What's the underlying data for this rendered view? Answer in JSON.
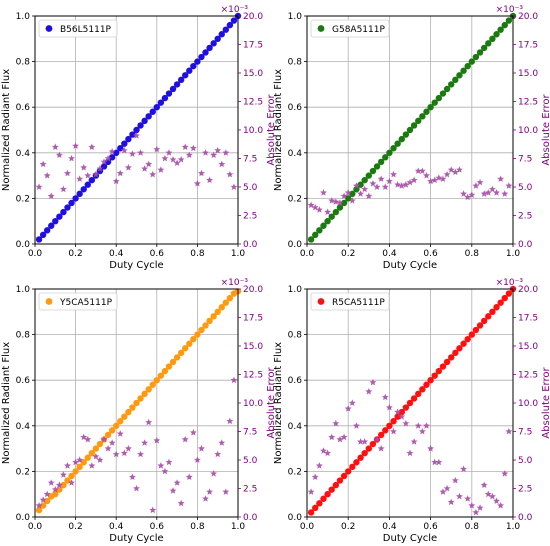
{
  "chart_data": [
    {
      "type": "scatter",
      "series": [
        {
          "name": "B56L5111P",
          "axis": "left",
          "color": "#1f10e0",
          "marker": "circle",
          "x": [
            0.02,
            0.04,
            0.06,
            0.08,
            0.1,
            0.12,
            0.14,
            0.16,
            0.18,
            0.2,
            0.22,
            0.24,
            0.26,
            0.28,
            0.3,
            0.32,
            0.34,
            0.36,
            0.38,
            0.4,
            0.42,
            0.44,
            0.46,
            0.48,
            0.5,
            0.52,
            0.54,
            0.56,
            0.58,
            0.6,
            0.62,
            0.64,
            0.66,
            0.68,
            0.7,
            0.72,
            0.74,
            0.76,
            0.78,
            0.8,
            0.82,
            0.84,
            0.86,
            0.88,
            0.9,
            0.92,
            0.94,
            0.96,
            0.98,
            1.0
          ],
          "y": [
            0.02,
            0.04,
            0.06,
            0.08,
            0.1,
            0.12,
            0.14,
            0.16,
            0.18,
            0.2,
            0.22,
            0.24,
            0.26,
            0.28,
            0.3,
            0.32,
            0.34,
            0.36,
            0.38,
            0.4,
            0.42,
            0.44,
            0.46,
            0.48,
            0.5,
            0.52,
            0.54,
            0.56,
            0.58,
            0.6,
            0.62,
            0.64,
            0.66,
            0.68,
            0.7,
            0.72,
            0.74,
            0.76,
            0.78,
            0.8,
            0.82,
            0.84,
            0.86,
            0.88,
            0.9,
            0.92,
            0.94,
            0.96,
            0.98,
            1.0
          ]
        },
        {
          "axis": "right",
          "color": "#a64ca6",
          "marker": "star",
          "x": [
            0.02,
            0.04,
            0.06,
            0.08,
            0.1,
            0.12,
            0.14,
            0.16,
            0.18,
            0.2,
            0.22,
            0.24,
            0.26,
            0.28,
            0.3,
            0.32,
            0.34,
            0.36,
            0.38,
            0.4,
            0.42,
            0.44,
            0.46,
            0.48,
            0.5,
            0.52,
            0.54,
            0.56,
            0.58,
            0.6,
            0.62,
            0.64,
            0.66,
            0.68,
            0.7,
            0.72,
            0.74,
            0.76,
            0.78,
            0.8,
            0.82,
            0.84,
            0.86,
            0.88,
            0.9,
            0.92,
            0.94,
            0.96,
            0.98
          ],
          "y": [
            5.0,
            7.0,
            6.0,
            4.2,
            8.5,
            7.8,
            4.8,
            6.2,
            7.5,
            8.6,
            5.7,
            6.7,
            6.0,
            8.5,
            6.1,
            6.6,
            7.2,
            7.5,
            8.1,
            5.5,
            6.2,
            8.2,
            6.7,
            7.9,
            9.5,
            8.0,
            6.6,
            7.0,
            6.1,
            8.3,
            6.5,
            7.5,
            8.0,
            7.4,
            7.1,
            7.4,
            8.5,
            7.8,
            8.4,
            5.3,
            6.2,
            8.0,
            5.6,
            7.8,
            8.2,
            7.0,
            8.0,
            6.1,
            5.0
          ]
        }
      ],
      "xlabel": "Duty Cycle",
      "ylabel": "Normalized Radiant Flux",
      "y2label": "Absolute Error",
      "y2_multiplier": "×10⁻³",
      "xlim": [
        0,
        1
      ],
      "ylim": [
        0,
        1
      ],
      "y2lim": [
        0,
        20
      ],
      "xticks": [
        0.0,
        0.2,
        0.4,
        0.6,
        0.8,
        1.0
      ],
      "yticks": [
        0.0,
        0.2,
        0.4,
        0.6,
        0.8,
        1.0
      ],
      "y2ticks": [
        0.0,
        2.5,
        5.0,
        7.5,
        10.0,
        12.5,
        15.0,
        17.5,
        20.0
      ],
      "grid": true,
      "legend": "top-left"
    },
    {
      "type": "scatter",
      "series": [
        {
          "name": "G58A5111P",
          "axis": "left",
          "color": "#1a7a10",
          "marker": "circle",
          "x": [
            0.02,
            0.04,
            0.06,
            0.08,
            0.1,
            0.12,
            0.14,
            0.16,
            0.18,
            0.2,
            0.22,
            0.24,
            0.26,
            0.28,
            0.3,
            0.32,
            0.34,
            0.36,
            0.38,
            0.4,
            0.42,
            0.44,
            0.46,
            0.48,
            0.5,
            0.52,
            0.54,
            0.56,
            0.58,
            0.6,
            0.62,
            0.64,
            0.66,
            0.68,
            0.7,
            0.72,
            0.74,
            0.76,
            0.78,
            0.8,
            0.82,
            0.84,
            0.86,
            0.88,
            0.9,
            0.92,
            0.94,
            0.96,
            0.98,
            1.0
          ],
          "y": [
            0.02,
            0.04,
            0.06,
            0.08,
            0.1,
            0.12,
            0.14,
            0.16,
            0.18,
            0.2,
            0.22,
            0.24,
            0.26,
            0.28,
            0.3,
            0.32,
            0.34,
            0.36,
            0.38,
            0.4,
            0.42,
            0.44,
            0.46,
            0.48,
            0.5,
            0.52,
            0.54,
            0.56,
            0.58,
            0.6,
            0.62,
            0.64,
            0.66,
            0.68,
            0.7,
            0.72,
            0.74,
            0.76,
            0.78,
            0.8,
            0.82,
            0.84,
            0.86,
            0.88,
            0.9,
            0.92,
            0.94,
            0.96,
            0.98,
            1.0
          ]
        },
        {
          "axis": "right",
          "color": "#a64ca6",
          "marker": "star",
          "x": [
            0.02,
            0.04,
            0.06,
            0.08,
            0.1,
            0.12,
            0.14,
            0.16,
            0.18,
            0.2,
            0.22,
            0.24,
            0.26,
            0.28,
            0.3,
            0.32,
            0.34,
            0.36,
            0.38,
            0.4,
            0.42,
            0.44,
            0.46,
            0.48,
            0.5,
            0.52,
            0.54,
            0.56,
            0.58,
            0.6,
            0.62,
            0.64,
            0.66,
            0.68,
            0.7,
            0.72,
            0.74,
            0.76,
            0.78,
            0.8,
            0.82,
            0.84,
            0.86,
            0.88,
            0.9,
            0.92,
            0.94,
            0.96,
            0.98
          ],
          "y": [
            3.4,
            3.2,
            3.0,
            4.5,
            2.8,
            3.8,
            3.7,
            3.6,
            4.2,
            4.5,
            3.8,
            5.1,
            4.4,
            4.8,
            4.2,
            5.3,
            5.0,
            5.7,
            5.0,
            5.5,
            6.1,
            5.2,
            5.1,
            5.2,
            5.4,
            5.6,
            6.4,
            6.4,
            6.0,
            5.5,
            5.6,
            5.8,
            5.7,
            6.1,
            6.5,
            6.3,
            6.5,
            4.4,
            4.1,
            4.3,
            5.1,
            5.4,
            4.4,
            4.5,
            4.8,
            4.5,
            5.7,
            4.4,
            5.1
          ]
        }
      ],
      "xlabel": "Duty Cycle",
      "ylabel": "Normalized Radiant Flux",
      "y2label": "Absolute Error",
      "y2_multiplier": "×10⁻³",
      "xlim": [
        0,
        1
      ],
      "ylim": [
        0,
        1
      ],
      "y2lim": [
        0,
        20
      ],
      "xticks": [
        0.0,
        0.2,
        0.4,
        0.6,
        0.8,
        1.0
      ],
      "yticks": [
        0.0,
        0.2,
        0.4,
        0.6,
        0.8,
        1.0
      ],
      "y2ticks": [
        0.0,
        2.5,
        5.0,
        7.5,
        10.0,
        12.5,
        15.0,
        17.5,
        20.0
      ],
      "grid": true,
      "legend": "top-left"
    },
    {
      "type": "scatter",
      "series": [
        {
          "name": "Y5CA5111P",
          "axis": "left",
          "color": "#ff9a10",
          "marker": "circle",
          "x": [
            0.02,
            0.04,
            0.06,
            0.08,
            0.1,
            0.12,
            0.14,
            0.16,
            0.18,
            0.2,
            0.22,
            0.24,
            0.26,
            0.28,
            0.3,
            0.32,
            0.34,
            0.36,
            0.38,
            0.4,
            0.42,
            0.44,
            0.46,
            0.48,
            0.5,
            0.52,
            0.54,
            0.56,
            0.58,
            0.6,
            0.62,
            0.64,
            0.66,
            0.68,
            0.7,
            0.72,
            0.74,
            0.76,
            0.78,
            0.8,
            0.82,
            0.84,
            0.86,
            0.88,
            0.9,
            0.92,
            0.94,
            0.96,
            0.98,
            1.0
          ],
          "y": [
            0.03,
            0.05,
            0.07,
            0.09,
            0.1,
            0.12,
            0.14,
            0.16,
            0.18,
            0.2,
            0.22,
            0.24,
            0.26,
            0.28,
            0.3,
            0.32,
            0.34,
            0.36,
            0.38,
            0.4,
            0.42,
            0.44,
            0.46,
            0.48,
            0.5,
            0.52,
            0.54,
            0.56,
            0.58,
            0.6,
            0.62,
            0.64,
            0.66,
            0.68,
            0.7,
            0.72,
            0.74,
            0.76,
            0.78,
            0.8,
            0.82,
            0.84,
            0.86,
            0.88,
            0.9,
            0.92,
            0.94,
            0.96,
            0.98,
            0.99
          ]
        },
        {
          "axis": "right",
          "color": "#a64ca6",
          "marker": "star",
          "x": [
            0.02,
            0.04,
            0.06,
            0.08,
            0.1,
            0.12,
            0.14,
            0.16,
            0.18,
            0.2,
            0.22,
            0.24,
            0.26,
            0.28,
            0.3,
            0.32,
            0.34,
            0.36,
            0.38,
            0.4,
            0.42,
            0.44,
            0.46,
            0.48,
            0.5,
            0.52,
            0.54,
            0.56,
            0.58,
            0.6,
            0.62,
            0.64,
            0.66,
            0.68,
            0.7,
            0.72,
            0.74,
            0.76,
            0.78,
            0.8,
            0.82,
            0.84,
            0.86,
            0.88,
            0.9,
            0.92,
            0.94,
            0.96,
            0.98
          ],
          "y": [
            1.0,
            1.5,
            2.0,
            3.0,
            2.4,
            2.8,
            3.7,
            4.5,
            3.0,
            4.8,
            5.0,
            7.0,
            6.8,
            4.5,
            5.3,
            5.0,
            6.8,
            6.0,
            6.5,
            5.5,
            7.3,
            5.6,
            6.0,
            3.5,
            2.5,
            5.5,
            6.5,
            8.3,
            0.6,
            6.7,
            4.5,
            4.0,
            4.8,
            2.3,
            3.0,
            1.2,
            6.8,
            3.5,
            7.4,
            5.0,
            6.0,
            1.6,
            2.2,
            3.8,
            5.5,
            6.5,
            2.2,
            8.4,
            12.0
          ]
        }
      ],
      "xlabel": "Duty Cycle",
      "ylabel": "Normalized Radiant Flux",
      "y2label": "Absolute Error",
      "y2_multiplier": "×10⁻³",
      "xlim": [
        0,
        1
      ],
      "ylim": [
        0,
        1
      ],
      "y2lim": [
        0,
        20
      ],
      "xticks": [
        0.0,
        0.2,
        0.4,
        0.6,
        0.8,
        1.0
      ],
      "yticks": [
        0.0,
        0.2,
        0.4,
        0.6,
        0.8,
        1.0
      ],
      "y2ticks": [
        0.0,
        2.5,
        5.0,
        7.5,
        10.0,
        12.5,
        15.0,
        17.5,
        20.0
      ],
      "grid": true,
      "legend": "top-left"
    },
    {
      "type": "scatter",
      "series": [
        {
          "name": "R5CA5111P",
          "axis": "left",
          "color": "#ff1010",
          "marker": "circle",
          "x": [
            0.02,
            0.04,
            0.06,
            0.08,
            0.1,
            0.12,
            0.14,
            0.16,
            0.18,
            0.2,
            0.22,
            0.24,
            0.26,
            0.28,
            0.3,
            0.32,
            0.34,
            0.36,
            0.38,
            0.4,
            0.42,
            0.44,
            0.46,
            0.48,
            0.5,
            0.52,
            0.54,
            0.56,
            0.58,
            0.6,
            0.62,
            0.64,
            0.66,
            0.68,
            0.7,
            0.72,
            0.74,
            0.76,
            0.78,
            0.8,
            0.82,
            0.84,
            0.86,
            0.88,
            0.9,
            0.92,
            0.94,
            0.96,
            0.98,
            1.0
          ],
          "y": [
            0.02,
            0.04,
            0.06,
            0.08,
            0.1,
            0.12,
            0.14,
            0.16,
            0.18,
            0.2,
            0.22,
            0.24,
            0.26,
            0.28,
            0.3,
            0.32,
            0.34,
            0.36,
            0.38,
            0.4,
            0.42,
            0.44,
            0.46,
            0.48,
            0.5,
            0.52,
            0.54,
            0.56,
            0.58,
            0.6,
            0.62,
            0.64,
            0.66,
            0.68,
            0.7,
            0.72,
            0.74,
            0.76,
            0.78,
            0.8,
            0.82,
            0.84,
            0.86,
            0.88,
            0.9,
            0.92,
            0.94,
            0.96,
            0.98,
            1.0
          ]
        },
        {
          "axis": "right",
          "color": "#a64ca6",
          "marker": "star",
          "x": [
            0.02,
            0.04,
            0.06,
            0.08,
            0.1,
            0.12,
            0.14,
            0.16,
            0.18,
            0.2,
            0.22,
            0.24,
            0.26,
            0.28,
            0.3,
            0.32,
            0.34,
            0.36,
            0.38,
            0.4,
            0.42,
            0.44,
            0.46,
            0.48,
            0.5,
            0.52,
            0.54,
            0.56,
            0.58,
            0.6,
            0.62,
            0.64,
            0.66,
            0.68,
            0.7,
            0.72,
            0.74,
            0.76,
            0.78,
            0.8,
            0.82,
            0.84,
            0.86,
            0.88,
            0.9,
            0.92,
            0.94,
            0.96,
            0.98
          ],
          "y": [
            2.2,
            3.5,
            4.5,
            5.8,
            5.6,
            7.0,
            8.2,
            6.8,
            7.0,
            9.5,
            10.0,
            8.0,
            6.6,
            6.6,
            11.0,
            11.8,
            6.8,
            6.0,
            10.5,
            9.6,
            7.5,
            9.2,
            8.8,
            8.2,
            5.6,
            6.6,
            8.0,
            7.5,
            8.0,
            6.0,
            4.8,
            4.8,
            2.2,
            2.5,
            1.3,
            3.2,
            1.8,
            4.2,
            1.6,
            1.0,
            0.4,
            0.8,
            2.8,
            2.0,
            1.8,
            1.4,
            1.0,
            3.8,
            7.5
          ]
        }
      ],
      "xlabel": "Duty Cycle",
      "ylabel": "Normalized Radiant Flux",
      "y2label": "Absolute Error",
      "y2_multiplier": "×10⁻³",
      "xlim": [
        0,
        1
      ],
      "ylim": [
        0,
        1
      ],
      "y2lim": [
        0,
        20
      ],
      "xticks": [
        0.0,
        0.2,
        0.4,
        0.6,
        0.8,
        1.0
      ],
      "yticks": [
        0.0,
        0.2,
        0.4,
        0.6,
        0.8,
        1.0
      ],
      "y2ticks": [
        0.0,
        2.5,
        5.0,
        7.5,
        10.0,
        12.5,
        15.0,
        17.5,
        20.0
      ],
      "grid": true,
      "legend": "top-left"
    }
  ]
}
